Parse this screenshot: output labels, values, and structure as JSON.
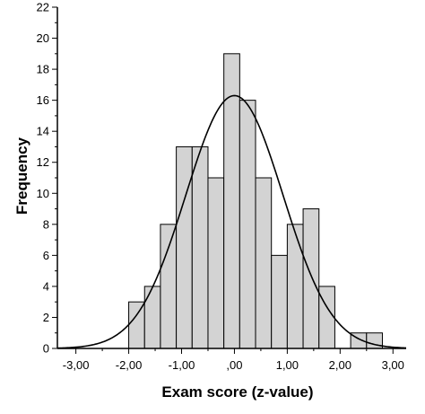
{
  "chart_data": {
    "type": "bar",
    "subtype": "histogram",
    "title": "",
    "xlabel": "Exam score (z-value)",
    "ylabel": "Frequency",
    "xlim": [
      -3.35,
      3.25
    ],
    "ylim": [
      0,
      22
    ],
    "bin_width": 0.3,
    "bins": [
      {
        "left": -2.0,
        "right": -1.7,
        "count": 3
      },
      {
        "left": -1.7,
        "right": -1.4,
        "count": 4
      },
      {
        "left": -1.4,
        "right": -1.1,
        "count": 8
      },
      {
        "left": -1.1,
        "right": -0.8,
        "count": 13
      },
      {
        "left": -0.8,
        "right": -0.5,
        "count": 13
      },
      {
        "left": -0.5,
        "right": -0.2,
        "count": 11
      },
      {
        "left": -0.2,
        "right": 0.1,
        "count": 19
      },
      {
        "left": 0.1,
        "right": 0.4,
        "count": 16
      },
      {
        "left": 0.4,
        "right": 0.7,
        "count": 11
      },
      {
        "left": 0.7,
        "right": 1.0,
        "count": 6
      },
      {
        "left": 1.0,
        "right": 1.3,
        "count": 8
      },
      {
        "left": 1.3,
        "right": 1.6,
        "count": 9
      },
      {
        "left": 1.6,
        "right": 1.9,
        "count": 4
      },
      {
        "left": 2.2,
        "right": 2.5,
        "count": 1
      },
      {
        "left": 2.5,
        "right": 2.8,
        "count": 1
      }
    ],
    "normal_curve": {
      "mean": 0.0,
      "sd": 0.92,
      "peak_frequency": 16.3
    },
    "x_ticks": [
      {
        "value": -3.0,
        "label": "-3,00"
      },
      {
        "value": -2.0,
        "label": "-2,00"
      },
      {
        "value": -1.0,
        "label": "-1,00"
      },
      {
        "value": 0.0,
        "label": ",00"
      },
      {
        "value": 1.0,
        "label": "1,00"
      },
      {
        "value": 2.0,
        "label": "2,00"
      },
      {
        "value": 3.0,
        "label": "3,00"
      }
    ],
    "y_ticks": [
      {
        "value": 0,
        "label": "0"
      },
      {
        "value": 2,
        "label": "2"
      },
      {
        "value": 4,
        "label": "4"
      },
      {
        "value": 6,
        "label": "6"
      },
      {
        "value": 8,
        "label": "8"
      },
      {
        "value": 10,
        "label": "10"
      },
      {
        "value": 12,
        "label": "12"
      },
      {
        "value": 14,
        "label": "14"
      },
      {
        "value": 16,
        "label": "16"
      },
      {
        "value": 18,
        "label": "18"
      },
      {
        "value": 20,
        "label": "20"
      },
      {
        "value": 22,
        "label": "22"
      }
    ],
    "grid": false,
    "legend": "none",
    "colors": {
      "bar_fill": "#d3d3d3",
      "bar_stroke": "#000000",
      "curve": "#000000",
      "axis": "#000000",
      "background": "#ffffff"
    }
  }
}
